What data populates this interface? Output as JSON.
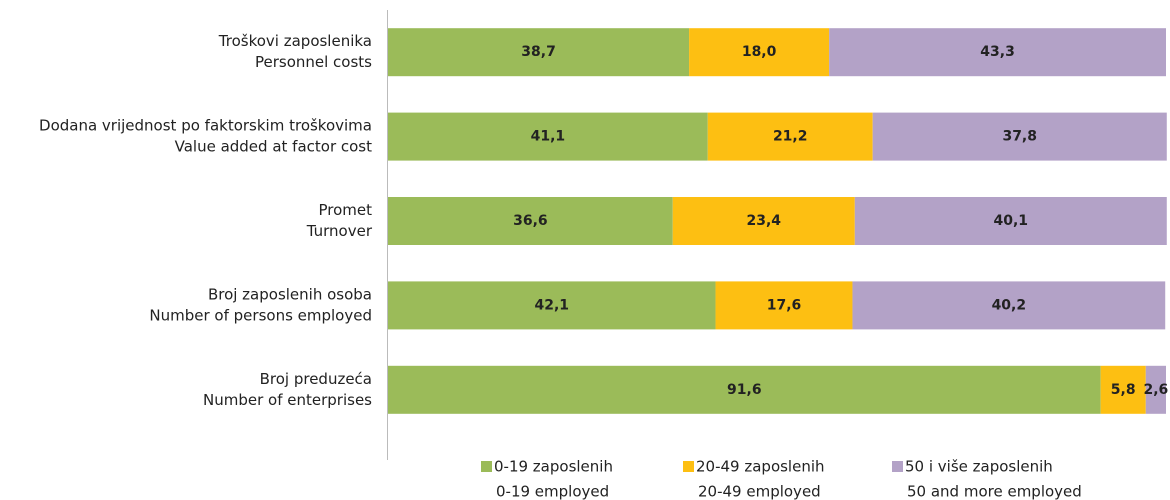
{
  "chart_data": {
    "type": "stacked_bar_horizontal",
    "categories": [
      [
        "Troškovi zaposlenika",
        "Personnel costs"
      ],
      [
        "Dodana vrijednost po faktorskim troškovima",
        "Value added at factor cost"
      ],
      [
        "Promet",
        "Turnover"
      ],
      [
        "Broj zaposlenih osoba",
        "Number of persons employed"
      ],
      [
        "Broj preduzeća",
        "Number of enterprises"
      ]
    ],
    "series": [
      {
        "name": [
          "0-19 zaposlenih",
          "0-19  employed"
        ],
        "color": "#9bbb59",
        "values": [
          38.7,
          41.1,
          36.6,
          42.1,
          91.6
        ],
        "value_labels": [
          "38,7",
          "41,1",
          "36,6",
          "42,1",
          "91,6"
        ]
      },
      {
        "name": [
          "20-49 zaposlenih",
          "20-49 employed"
        ],
        "color": "#fdbf12",
        "values": [
          18.0,
          21.2,
          23.4,
          17.6,
          5.8
        ],
        "value_labels": [
          "18,0",
          "21,2",
          "23,4",
          "17,6",
          "5,8"
        ]
      },
      {
        "name": [
          "50 i više zaposlenih",
          "50 and more employed"
        ],
        "color": "#b3a2c7",
        "values": [
          43.3,
          37.8,
          40.1,
          40.2,
          2.6
        ],
        "value_labels": [
          "43,3",
          "37,8",
          "40,1",
          "40,2",
          "2,6"
        ]
      }
    ],
    "xlim": [
      0,
      100
    ]
  }
}
